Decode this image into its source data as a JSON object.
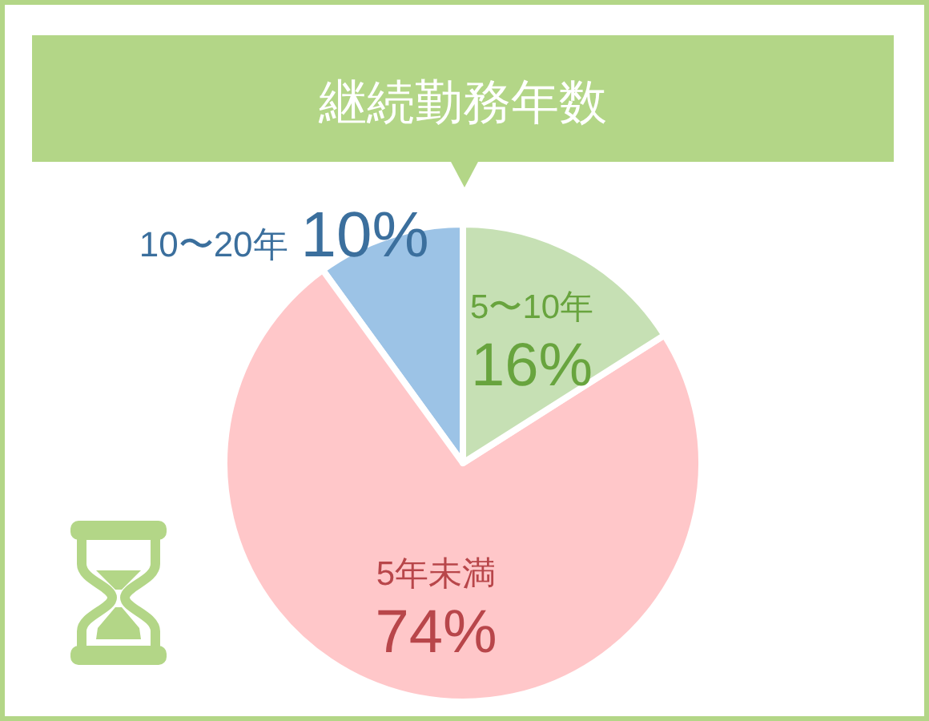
{
  "chart_data": {
    "type": "pie",
    "title": "継続勤務年数",
    "categories": [
      "10〜20年",
      "5年未満",
      "5〜10年"
    ],
    "values": [
      10,
      74,
      16
    ],
    "value_labels": [
      "10%",
      "74%",
      "16%"
    ],
    "colors": [
      "#9cc3e6",
      "#ffc7c9",
      "#c6e0b4"
    ],
    "legend": false
  }
}
